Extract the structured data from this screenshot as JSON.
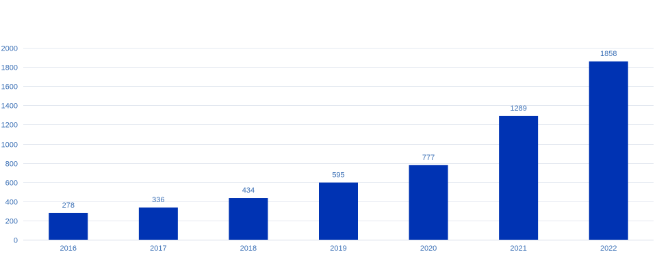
{
  "chart_data": {
    "type": "bar",
    "title": "",
    "xlabel": "",
    "ylabel": "",
    "categories": [
      "2016",
      "2017",
      "2018",
      "2019",
      "2020",
      "2021",
      "2022"
    ],
    "values": [
      278,
      336,
      434,
      595,
      777,
      1289,
      1858
    ],
    "ylim": [
      0,
      2000
    ],
    "yticks": [
      0,
      200,
      400,
      600,
      800,
      1000,
      1200,
      1400,
      1600,
      1800,
      2000
    ],
    "grid": true,
    "legend": "none",
    "data_labels": true,
    "colors": {
      "bar": "#0033b3",
      "tick_text": "#3a6fb5",
      "label_text": "#3a6fb5",
      "grid": "#e3e8f0"
    }
  }
}
